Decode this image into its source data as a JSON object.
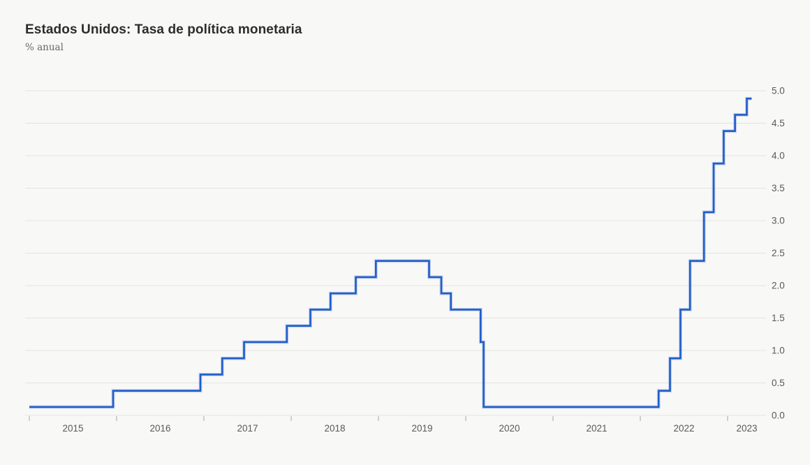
{
  "header": {
    "title": "Estados Unidos: Tasa de política monetaria",
    "subtitle": "% anual"
  },
  "chart_data": {
    "type": "line",
    "step": "after",
    "title": "Estados Unidos: Tasa de política monetaria",
    "subtitle": "% anual",
    "series_name": "Tasa de política monetaria",
    "unit": "% anual",
    "line_color": "#1e5cc9",
    "line_halo_color": "rgba(30,92,201,0.22)",
    "background_color": "#f8f8f7",
    "gridline_color": "#e4e3e1",
    "tick_color": "#a9a6a2",
    "label_color": "#5c5955",
    "grid": true,
    "legend_position": "none",
    "y_axis_side": "right",
    "x_range": [
      2015.0,
      2023.44
    ],
    "y_range": [
      0.0,
      5.0
    ],
    "x_ticks": [
      2015,
      2016,
      2017,
      2018,
      2019,
      2020,
      2021,
      2022,
      2023
    ],
    "x_tick_labels": [
      "2015",
      "2016",
      "2017",
      "2018",
      "2019",
      "2020",
      "2021",
      "2022",
      "2023"
    ],
    "y_ticks": [
      0.0,
      0.5,
      1.0,
      1.5,
      2.0,
      2.5,
      3.0,
      3.5,
      4.0,
      4.5,
      5.0
    ],
    "y_tick_labels": [
      "0.0",
      "0.5",
      "1.0",
      "1.5",
      "2.0",
      "2.5",
      "3.0",
      "3.5",
      "4.0",
      "4.5",
      "5.0"
    ],
    "points_desc": "Step points: [decimal_year_of_change, new_rate_%]",
    "points": [
      [
        2015.0,
        0.13
      ],
      [
        2015.96,
        0.38
      ],
      [
        2016.96,
        0.63
      ],
      [
        2017.21,
        0.88
      ],
      [
        2017.46,
        1.13
      ],
      [
        2017.95,
        1.38
      ],
      [
        2018.22,
        1.63
      ],
      [
        2018.45,
        1.88
      ],
      [
        2018.74,
        2.13
      ],
      [
        2018.97,
        2.38
      ],
      [
        2019.58,
        2.13
      ],
      [
        2019.72,
        1.88
      ],
      [
        2019.83,
        1.63
      ],
      [
        2020.17,
        1.13
      ],
      [
        2020.205,
        0.13
      ],
      [
        2022.21,
        0.38
      ],
      [
        2022.34,
        0.88
      ],
      [
        2022.46,
        1.63
      ],
      [
        2022.57,
        2.38
      ],
      [
        2022.73,
        3.13
      ],
      [
        2022.84,
        3.88
      ],
      [
        2022.955,
        4.38
      ],
      [
        2023.085,
        4.63
      ],
      [
        2023.22,
        4.88
      ],
      [
        2023.275,
        4.88
      ]
    ]
  }
}
